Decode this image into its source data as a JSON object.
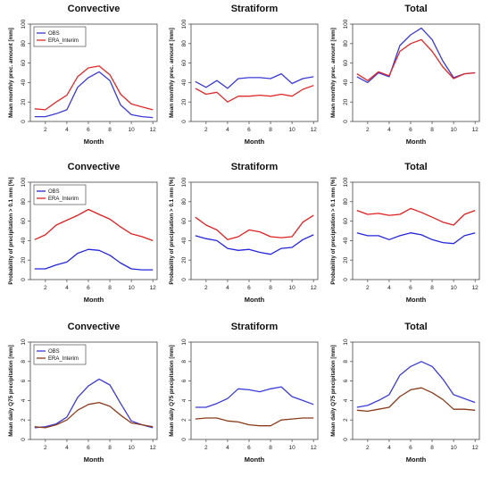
{
  "chart_data": [
    {
      "type": "line",
      "title": "Convective",
      "xlabel": "Month",
      "ylabel": "Mean monthly prec. amount [mm]",
      "x": [
        1,
        2,
        3,
        4,
        5,
        6,
        7,
        8,
        9,
        10,
        11,
        12
      ],
      "xlim": [
        0.6,
        12.4
      ],
      "ylim": [
        0,
        100
      ],
      "xticks": [
        2,
        4,
        6,
        8,
        10,
        12
      ],
      "yticks": [
        0,
        20,
        40,
        60,
        80,
        100
      ],
      "legend": "top-left",
      "series": [
        {
          "name": "OBS",
          "color": "#3a3ad8",
          "values": [
            5,
            5,
            8,
            12,
            35,
            45,
            51,
            42,
            17,
            7,
            5,
            4
          ]
        },
        {
          "name": "ERA_Interim",
          "color": "#e02a2a",
          "values": [
            13,
            12,
            20,
            27,
            46,
            55,
            57,
            48,
            28,
            18,
            15,
            12
          ]
        }
      ]
    },
    {
      "type": "line",
      "title": "Stratiform",
      "xlabel": "Month",
      "ylabel": "Mean monthly prec. amount [mm]",
      "x": [
        1,
        2,
        3,
        4,
        5,
        6,
        7,
        8,
        9,
        10,
        11,
        12
      ],
      "xlim": [
        0.6,
        12.4
      ],
      "ylim": [
        0,
        100
      ],
      "xticks": [
        2,
        4,
        6,
        8,
        10,
        12
      ],
      "yticks": [
        0,
        20,
        40,
        60,
        80,
        100
      ],
      "series": [
        {
          "color": "#3a3ad8",
          "values": [
            41,
            35,
            42,
            34,
            44,
            45,
            45,
            44,
            49,
            39,
            44,
            46
          ]
        },
        {
          "color": "#e02a2a",
          "values": [
            34,
            28,
            30,
            20,
            26,
            26,
            27,
            26,
            28,
            26,
            33,
            37
          ]
        }
      ]
    },
    {
      "type": "line",
      "title": "Total",
      "xlabel": "Month",
      "ylabel": "Mean monthly prec. amount [mm]",
      "x": [
        1,
        2,
        3,
        4,
        5,
        6,
        7,
        8,
        9,
        10,
        11,
        12
      ],
      "xlim": [
        0.6,
        12.4
      ],
      "ylim": [
        0,
        100
      ],
      "xticks": [
        2,
        4,
        6,
        8,
        10,
        12
      ],
      "yticks": [
        0,
        20,
        40,
        60,
        80,
        100
      ],
      "series": [
        {
          "color": "#3a3ad8",
          "values": [
            46,
            40,
            50,
            46,
            78,
            89,
            96,
            84,
            62,
            45,
            49,
            50
          ]
        },
        {
          "color": "#e02a2a",
          "values": [
            49,
            42,
            51,
            47,
            72,
            80,
            84,
            72,
            56,
            44,
            49,
            50
          ]
        }
      ]
    },
    {
      "type": "line",
      "title": "Convective",
      "xlabel": "Month",
      "ylabel": "Probability of precipitation > 0.1 mm [%]",
      "x": [
        1,
        2,
        3,
        4,
        5,
        6,
        7,
        8,
        9,
        10,
        11,
        12
      ],
      "xlim": [
        0.6,
        12.4
      ],
      "ylim": [
        0,
        100
      ],
      "xticks": [
        2,
        4,
        6,
        8,
        10,
        12
      ],
      "yticks": [
        0,
        20,
        40,
        60,
        80,
        100
      ],
      "legend": "top-left",
      "series": [
        {
          "name": "OBS",
          "color": "#2525dd",
          "values": [
            11,
            11,
            15,
            18,
            27,
            31,
            30,
            25,
            17,
            11,
            10,
            10
          ]
        },
        {
          "name": "ERA_Interim",
          "color": "#e02020",
          "values": [
            41,
            46,
            56,
            61,
            66,
            72,
            67,
            62,
            54,
            47,
            44,
            40
          ]
        }
      ]
    },
    {
      "type": "line",
      "title": "Stratiform",
      "xlabel": "Month",
      "ylabel": "Probability of precipitation > 0.1 mm [%]",
      "x": [
        1,
        2,
        3,
        4,
        5,
        6,
        7,
        8,
        9,
        10,
        11,
        12
      ],
      "xlim": [
        0.6,
        12.4
      ],
      "ylim": [
        0,
        100
      ],
      "xticks": [
        2,
        4,
        6,
        8,
        10,
        12
      ],
      "yticks": [
        0,
        20,
        40,
        60,
        80,
        100
      ],
      "series": [
        {
          "color": "#2525dd",
          "values": [
            45,
            42,
            40,
            32,
            30,
            31,
            28,
            26,
            32,
            33,
            41,
            46
          ]
        },
        {
          "color": "#e02020",
          "values": [
            64,
            56,
            51,
            41,
            44,
            51,
            49,
            44,
            43,
            44,
            59,
            66
          ]
        }
      ]
    },
    {
      "type": "line",
      "title": "Total",
      "xlabel": "Month",
      "ylabel": "Probability of precipitation > 0.1 mm [%]",
      "x": [
        1,
        2,
        3,
        4,
        5,
        6,
        7,
        8,
        9,
        10,
        11,
        12
      ],
      "xlim": [
        0.6,
        12.4
      ],
      "ylim": [
        0,
        100
      ],
      "xticks": [
        2,
        4,
        6,
        8,
        10,
        12
      ],
      "yticks": [
        0,
        20,
        40,
        60,
        80,
        100
      ],
      "series": [
        {
          "color": "#2525dd",
          "values": [
            48,
            45,
            45,
            41,
            45,
            48,
            46,
            41,
            38,
            37,
            45,
            48
          ]
        },
        {
          "color": "#e02020",
          "values": [
            71,
            67,
            68,
            66,
            67,
            73,
            69,
            64,
            59,
            56,
            67,
            71
          ]
        }
      ]
    },
    {
      "type": "line",
      "title": "Convective",
      "xlabel": "Month",
      "ylabel": "Mean daily Q75 precipitation [mm]",
      "x": [
        1,
        2,
        3,
        4,
        5,
        6,
        7,
        8,
        9,
        10,
        11,
        12
      ],
      "xlim": [
        0.6,
        12.4
      ],
      "ylim": [
        0,
        10
      ],
      "xticks": [
        2,
        4,
        6,
        8,
        10,
        12
      ],
      "yticks": [
        0,
        2,
        4,
        6,
        8,
        10
      ],
      "legend": "top-left",
      "series": [
        {
          "name": "OBS",
          "color": "#3b3bdc",
          "values": [
            1.2,
            1.3,
            1.6,
            2.3,
            4.3,
            5.5,
            6.2,
            5.6,
            3.7,
            1.9,
            1.5,
            1.2
          ]
        },
        {
          "name": "ERA_Interim",
          "color": "#8b3a1a",
          "values": [
            1.3,
            1.2,
            1.5,
            2.0,
            3.0,
            3.6,
            3.8,
            3.4,
            2.5,
            1.7,
            1.5,
            1.3
          ]
        }
      ]
    },
    {
      "type": "line",
      "title": "Stratiform",
      "xlabel": "Month",
      "ylabel": "Mean daily Q75 precipitation [mm]",
      "x": [
        1,
        2,
        3,
        4,
        5,
        6,
        7,
        8,
        9,
        10,
        11,
        12
      ],
      "xlim": [
        0.6,
        12.4
      ],
      "ylim": [
        0,
        10
      ],
      "xticks": [
        2,
        4,
        6,
        8,
        10,
        12
      ],
      "yticks": [
        0,
        2,
        4,
        6,
        8,
        10
      ],
      "series": [
        {
          "color": "#3b3bdc",
          "values": [
            3.3,
            3.3,
            3.7,
            4.2,
            5.2,
            5.1,
            4.9,
            5.2,
            5.4,
            4.4,
            4.0,
            3.6
          ]
        },
        {
          "color": "#8b3a1a",
          "values": [
            2.1,
            2.2,
            2.2,
            1.9,
            1.8,
            1.5,
            1.4,
            1.4,
            2.0,
            2.1,
            2.2,
            2.2
          ]
        }
      ]
    },
    {
      "type": "line",
      "title": "Total",
      "xlabel": "Month",
      "ylabel": "Mean daily Q75 precipitation [mm]",
      "x": [
        1,
        2,
        3,
        4,
        5,
        6,
        7,
        8,
        9,
        10,
        11,
        12
      ],
      "xlim": [
        0.6,
        12.4
      ],
      "ylim": [
        0,
        10
      ],
      "xticks": [
        2,
        4,
        6,
        8,
        10,
        12
      ],
      "yticks": [
        0,
        2,
        4,
        6,
        8,
        10
      ],
      "series": [
        {
          "color": "#3b3bdc",
          "values": [
            3.3,
            3.5,
            4.0,
            4.6,
            6.6,
            7.5,
            8.0,
            7.5,
            6.2,
            4.6,
            4.2,
            3.8
          ]
        },
        {
          "color": "#8b3a1a",
          "values": [
            3.0,
            2.9,
            3.1,
            3.3,
            4.4,
            5.1,
            5.3,
            4.8,
            4.1,
            3.1,
            3.1,
            3.0
          ]
        }
      ]
    }
  ]
}
